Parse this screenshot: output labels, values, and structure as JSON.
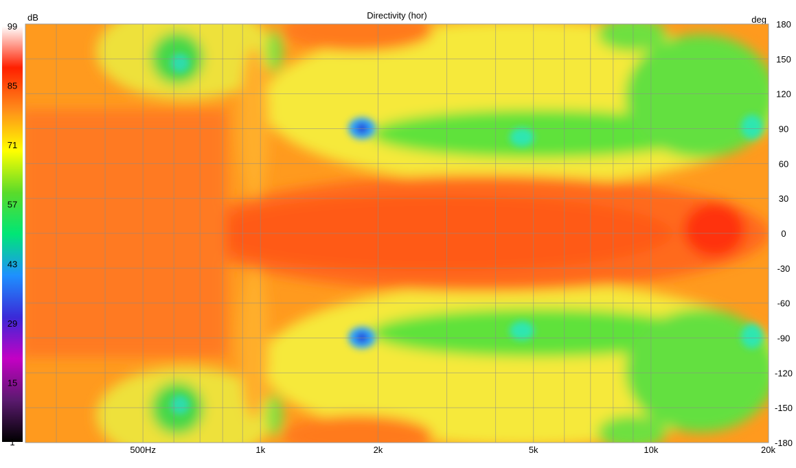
{
  "chart_data": {
    "type": "heatmap",
    "title": "Directivity (hor)",
    "colorbar": {
      "unit": "dB",
      "min": 1,
      "max": 99,
      "ticks": [
        99,
        85,
        71,
        57,
        43,
        29,
        15,
        1
      ],
      "colors": [
        "#000000",
        "#5a1a6e",
        "#c400c4",
        "#3a2ad8",
        "#1e90ff",
        "#00e676",
        "#5bdb2a",
        "#ffff00",
        "#ff8c1a",
        "#ff2000",
        "#ffffff"
      ]
    },
    "x_axis": {
      "scale": "log",
      "range": [
        250,
        20000
      ],
      "ticks": [
        {
          "value": 500,
          "label": "500Hz"
        },
        {
          "value": 1000,
          "label": "1k"
        },
        {
          "value": 2000,
          "label": "2k"
        },
        {
          "value": 5000,
          "label": "5k"
        },
        {
          "value": 10000,
          "label": "10k"
        },
        {
          "value": 20000,
          "label": "20k"
        }
      ],
      "gridlines": [
        300,
        400,
        500,
        600,
        700,
        800,
        900,
        1000,
        2000,
        3000,
        4000,
        5000,
        6000,
        7000,
        8000,
        9000,
        10000,
        20000
      ]
    },
    "y_axis": {
      "unit": "deg",
      "range": [
        -180,
        180
      ],
      "ticks": [
        180,
        150,
        120,
        90,
        60,
        30,
        0,
        -30,
        -60,
        -90,
        -120,
        -150,
        -180
      ]
    },
    "grid": true,
    "description_points": [
      {
        "freq": 2000,
        "angle": 90,
        "db": 40
      },
      {
        "freq": 2000,
        "angle": -90,
        "db": 40
      }
    ]
  }
}
